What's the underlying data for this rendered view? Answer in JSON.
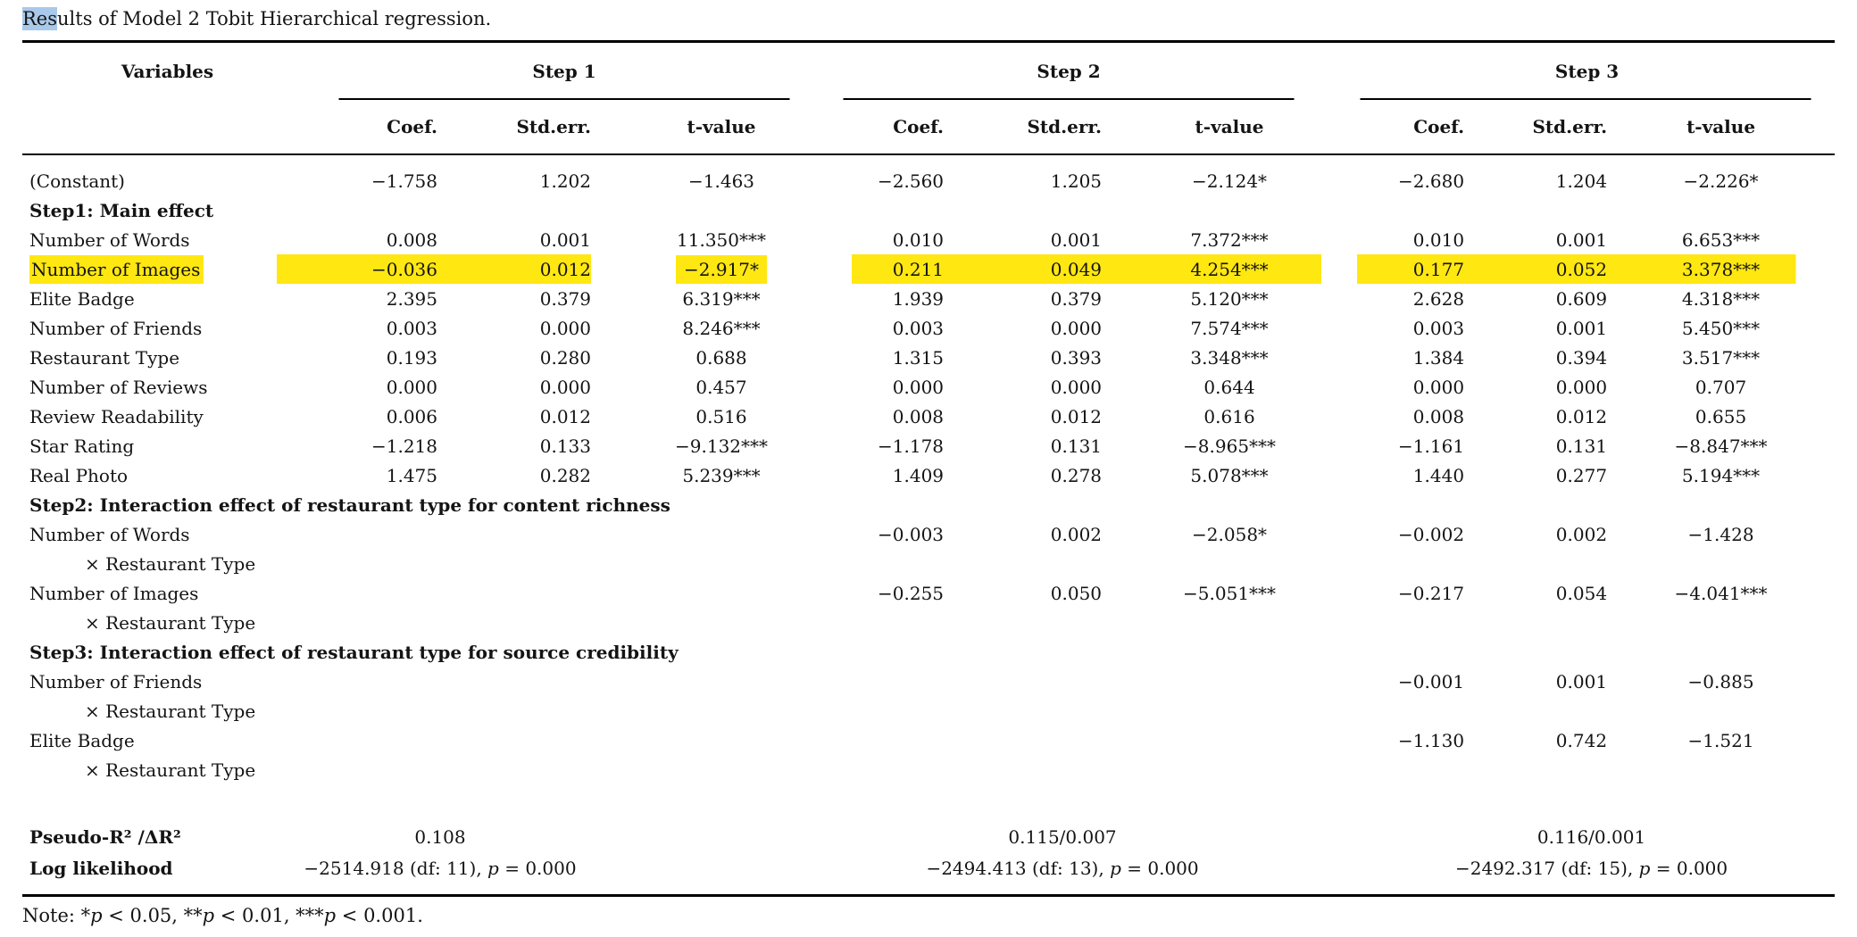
{
  "colors": {
    "highlight": "#ffe712",
    "selection": "#a9c9eb",
    "rule": "#000000",
    "text": "#141414"
  },
  "title": {
    "selected": "Res",
    "rest": "ults of Model 2 Tobit Hierarchical regression."
  },
  "table": {
    "headers": {
      "variables": "Variables",
      "steps": [
        "Step 1",
        "Step 2",
        "Step 3"
      ],
      "stats": [
        "Coef.",
        "Std.err.",
        "t-value"
      ]
    },
    "rows": [
      {
        "type": "data",
        "label": "(Constant)",
        "v": [
          "−1.758",
          "1.202",
          "−1.463",
          "−2.560",
          "1.205",
          "−2.124*",
          "−2.680",
          "1.204",
          "−2.226*"
        ]
      },
      {
        "type": "section",
        "label": "Step1: Main effect"
      },
      {
        "type": "data",
        "label": "Number of Words",
        "v": [
          "0.008",
          "0.001",
          "11.350***",
          "0.010",
          "0.001",
          "7.372***",
          "0.010",
          "0.001",
          "6.653***"
        ]
      },
      {
        "type": "data",
        "label": "Number of Images",
        "highlight": true,
        "v": [
          "−0.036",
          "0.012",
          "−2.917*",
          "0.211",
          "0.049",
          "4.254***",
          "0.177",
          "0.052",
          "3.378***"
        ]
      },
      {
        "type": "data",
        "label": "Elite Badge",
        "v": [
          "2.395",
          "0.379",
          "6.319***",
          "1.939",
          "0.379",
          "5.120***",
          "2.628",
          "0.609",
          "4.318***"
        ]
      },
      {
        "type": "data",
        "label": "Number of Friends",
        "v": [
          "0.003",
          "0.000",
          "8.246***",
          "0.003",
          "0.000",
          "7.574***",
          "0.003",
          "0.001",
          "5.450***"
        ]
      },
      {
        "type": "data",
        "label": "Restaurant Type",
        "v": [
          "0.193",
          "0.280",
          "0.688",
          "1.315",
          "0.393",
          "3.348***",
          "1.384",
          "0.394",
          "3.517***"
        ]
      },
      {
        "type": "data",
        "label": "Number of Reviews",
        "v": [
          "0.000",
          "0.000",
          "0.457",
          "0.000",
          "0.000",
          "0.644",
          "0.000",
          "0.000",
          "0.707"
        ]
      },
      {
        "type": "data",
        "label": "Review Readability",
        "v": [
          "0.006",
          "0.012",
          "0.516",
          "0.008",
          "0.012",
          "0.616",
          "0.008",
          "0.012",
          "0.655"
        ]
      },
      {
        "type": "data",
        "label": "Star Rating",
        "v": [
          "−1.218",
          "0.133",
          "−9.132***",
          "−1.178",
          "0.131",
          "−8.965***",
          "−1.161",
          "0.131",
          "−8.847***"
        ]
      },
      {
        "type": "data",
        "label": "Real Photo",
        "v": [
          "1.475",
          "0.282",
          "5.239***",
          "1.409",
          "0.278",
          "5.078***",
          "1.440",
          "0.277",
          "5.194***"
        ]
      },
      {
        "type": "section",
        "label": "Step2: Interaction effect of restaurant type for content richness"
      },
      {
        "type": "data",
        "label": "Number of Words",
        "v": [
          "",
          "",
          "",
          "−0.003",
          "0.002",
          "−2.058*",
          "−0.002",
          "0.002",
          "−1.428"
        ]
      },
      {
        "type": "sub",
        "label": "× Restaurant Type"
      },
      {
        "type": "data",
        "label": "Number of Images",
        "v": [
          "",
          "",
          "",
          "−0.255",
          "0.050",
          "−5.051***",
          "−0.217",
          "0.054",
          "−4.041***"
        ]
      },
      {
        "type": "sub",
        "label": "× Restaurant Type"
      },
      {
        "type": "section",
        "label": "Step3: Interaction effect of restaurant type for source credibility"
      },
      {
        "type": "data",
        "label": "Number of Friends",
        "v": [
          "",
          "",
          "",
          "",
          "",
          "",
          "−0.001",
          "0.001",
          "−0.885"
        ]
      },
      {
        "type": "sub",
        "label": "× Restaurant Type"
      },
      {
        "type": "data",
        "label": "Elite Badge",
        "v": [
          "",
          "",
          "",
          "",
          "",
          "",
          "−1.130",
          "0.742",
          "−1.521"
        ]
      },
      {
        "type": "sub",
        "label": "× Restaurant Type"
      }
    ],
    "footer": {
      "pseudo_r2": {
        "label": "Pseudo-R² /ΔR²",
        "s1": "0.108",
        "s2": "0.115/0.007",
        "s3": "0.116/0.001"
      },
      "log_likelihood": {
        "label": "Log likelihood",
        "s1": [
          "−2514.918 (df: 11), ",
          "p",
          " = 0.000"
        ],
        "s2": [
          "−2494.413 (df: 13), ",
          "p",
          " = 0.000"
        ],
        "s3": [
          "−2492.317 (df: 15), ",
          "p",
          " = 0.000"
        ]
      }
    }
  },
  "note_parts": [
    "Note: *",
    "p",
    " < 0.05, **",
    "p",
    " < 0.01, ***",
    "p",
    " < 0.001."
  ]
}
